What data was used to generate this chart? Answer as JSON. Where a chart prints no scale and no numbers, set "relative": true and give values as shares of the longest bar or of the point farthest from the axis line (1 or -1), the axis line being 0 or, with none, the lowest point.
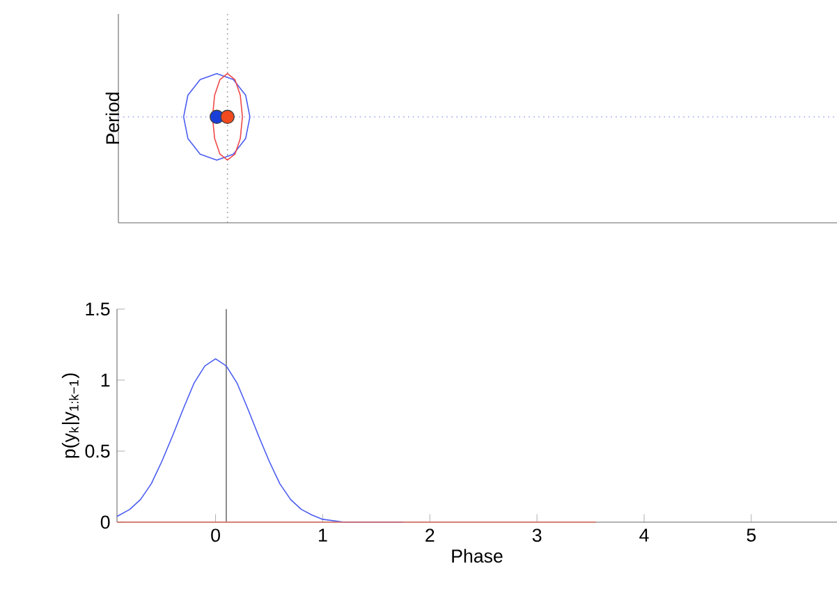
{
  "chart_data": [
    {
      "type": "line",
      "ylabel": "Period",
      "relative": true,
      "xlim": [
        -0.92,
        5.8
      ],
      "tick_labels": false,
      "ref_lines": [
        {
          "axis": "x",
          "value": 0.1,
          "color": "#909090",
          "line_style": "dotted"
        },
        {
          "axis": "y",
          "value": 0.71,
          "color": "#a8b0f0",
          "line_style": "dotted"
        }
      ],
      "series": [
        {
          "type": "line",
          "color": "#4a5cf0",
          "x": [
            -0.31,
            -0.27,
            -0.155,
            0,
            0.155,
            0.27,
            0.31,
            null,
            -0.31,
            -0.27,
            -0.155,
            0,
            0.155,
            0.27,
            0.31
          ],
          "values": [
            0.71,
            0.855,
            0.96,
            1.0,
            0.96,
            0.855,
            0.71,
            null,
            0.71,
            0.565,
            0.46,
            0.42,
            0.46,
            0.565,
            0.71
          ]
        },
        {
          "type": "line",
          "color": "#f04848",
          "x": [
            -0.04,
            -0.02,
            0.03,
            0.1,
            0.17,
            0.22,
            0.24,
            null,
            -0.04,
            -0.02,
            0.03,
            0.1,
            0.17,
            0.22,
            0.24
          ],
          "values": [
            0.71,
            0.855,
            0.96,
            1.0,
            0.96,
            0.855,
            0.71,
            null,
            0.71,
            0.565,
            0.46,
            0.42,
            0.46,
            0.565,
            0.71
          ]
        },
        {
          "type": "scatter",
          "color": "#1a3ed8",
          "x": [
            0
          ],
          "values": [
            0.71
          ]
        },
        {
          "type": "scatter",
          "color": "#f04a1e",
          "x": [
            0.1
          ],
          "values": [
            0.71
          ]
        }
      ]
    },
    {
      "type": "line",
      "xlabel": "Phase",
      "ylabel": "p(y$_{k}$|y$_{1:k−1}$)",
      "xlim": [
        -0.92,
        5.8
      ],
      "ylim": [
        0,
        1.5
      ],
      "xticks": [
        0,
        1,
        2,
        3,
        4,
        5
      ],
      "yticks": [
        0,
        0.5,
        1,
        1.5
      ],
      "ref_lines": [
        {
          "axis": "x",
          "value": 0.1,
          "color": "#707070",
          "line_style": "solid"
        }
      ],
      "series": [
        {
          "color": "#4a5cf0",
          "x": [
            -0.92,
            -0.8,
            -0.7,
            -0.6,
            -0.5,
            -0.4,
            -0.3,
            -0.2,
            -0.1,
            0,
            0.1,
            0.2,
            0.3,
            0.4,
            0.5,
            0.6,
            0.7,
            0.8,
            0.9,
            1.0,
            1.2,
            1.75
          ],
          "values": [
            0.04,
            0.09,
            0.16,
            0.27,
            0.43,
            0.61,
            0.8,
            0.98,
            1.1,
            1.15,
            1.1,
            0.98,
            0.8,
            0.61,
            0.43,
            0.27,
            0.16,
            0.09,
            0.05,
            0.02,
            0,
            0
          ]
        },
        {
          "color": "#e07060",
          "x": [
            -0.92,
            3.55
          ],
          "values": [
            0,
            0
          ]
        }
      ]
    }
  ]
}
